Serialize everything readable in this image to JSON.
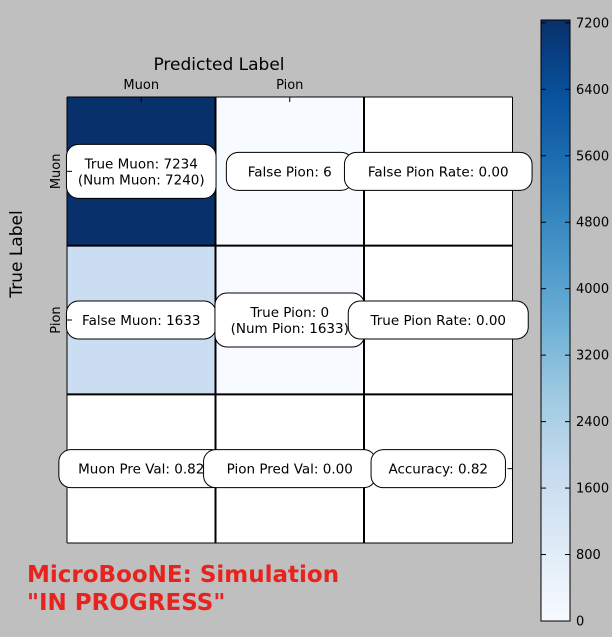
{
  "chart_data": {
    "type": "heatmap",
    "title": "Predicted Label",
    "xlabel": "Predicted Label",
    "ylabel": "True Label",
    "x_categories": [
      "Muon",
      "Pion"
    ],
    "y_categories": [
      "Muon",
      "Pion"
    ],
    "grid": [
      [
        7234,
        6,
        0
      ],
      [
        1633,
        0,
        0
      ],
      [
        0,
        0,
        0
      ]
    ],
    "cell_labels": [
      [
        "True Muon: 7234\n(Num Muon: 7240)",
        "False Pion: 6",
        "False Pion Rate: 0.00"
      ],
      [
        "False Muon: 1633",
        "True Pion: 0\n(Num Pion: 1633)",
        "True Pion Rate: 0.00"
      ],
      [
        "Muon Pre Val: 0.82",
        "Pion Pred Val: 0.00",
        "Accuracy: 0.82"
      ]
    ],
    "colorbar": {
      "min": 0,
      "max": 7234,
      "ticks": [
        0,
        800,
        1600,
        2400,
        3200,
        4000,
        4800,
        5600,
        6400,
        7200
      ],
      "colormap": "Blues"
    },
    "colors": {
      "low": "#f7fbff",
      "high": "#08306b"
    }
  },
  "watermark": {
    "line1": "MicroBooNE: Simulation",
    "line2": "\"IN PROGRESS\"",
    "color": "#e8221c"
  }
}
